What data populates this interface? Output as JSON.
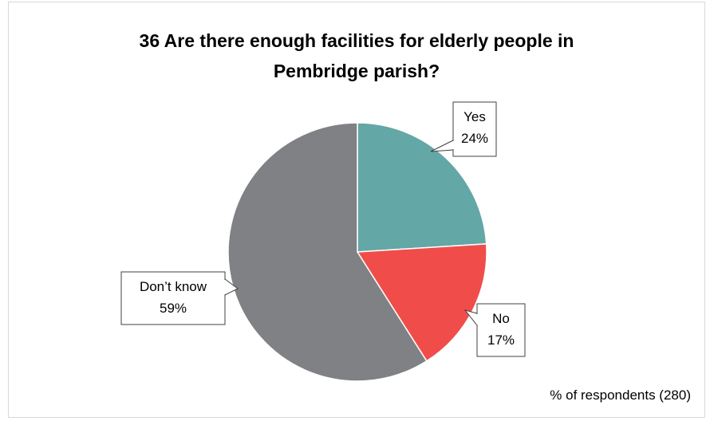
{
  "title_lines": [
    "36 Are there enough facilities for elderly people in",
    "Pembridge parish?"
  ],
  "footnote": "% of respondents (280)",
  "chart_data": {
    "type": "pie",
    "title": "36 Are there enough facilities for elderly people in Pembridge parish?",
    "unit": "%",
    "slices": [
      {
        "label": "Yes",
        "value": 24,
        "display": "24%",
        "color": "#63a7a6"
      },
      {
        "label": "No",
        "value": 17,
        "display": "17%",
        "color": "#f04d4a"
      },
      {
        "label": "Don’t know",
        "value": 59,
        "display": "59%",
        "color": "#808184"
      }
    ],
    "start": "top",
    "direction": "clockwise",
    "legend": "none",
    "data_labels": "callouts"
  }
}
